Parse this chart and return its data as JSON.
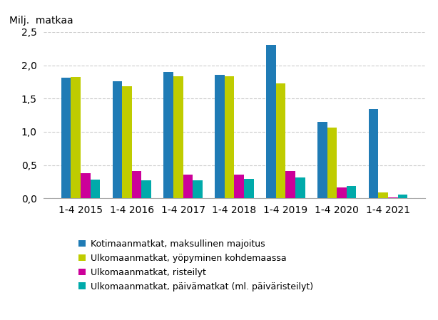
{
  "categories": [
    "1-4 2015",
    "1-4 2016",
    "1-4 2017",
    "1-4 2018",
    "1-4 2019",
    "1-4 2020",
    "1-4 2021"
  ],
  "series": {
    "Kotimaanmatkat, maksullinen majoitus": [
      1.81,
      1.76,
      1.9,
      1.86,
      2.31,
      1.15,
      1.34
    ],
    "Ulkomaanmatkat, yöpyminen kohdemaassa": [
      1.82,
      1.68,
      1.84,
      1.83,
      1.73,
      1.06,
      0.09
    ],
    "Ulkomaanmatkat, risteilyt": [
      0.38,
      0.41,
      0.36,
      0.36,
      0.41,
      0.16,
      0.01
    ],
    "Ulkomaanmatkat, päivämatkat (ml. päiväristeilyt)": [
      0.28,
      0.27,
      0.27,
      0.29,
      0.31,
      0.19,
      0.06
    ]
  },
  "colors": [
    "#1F7BB5",
    "#BFCC00",
    "#CC0099",
    "#00AAAA"
  ],
  "ylabel": "Milj.  matkaa",
  "ylim": [
    0,
    2.5
  ],
  "yticks": [
    0.0,
    0.5,
    1.0,
    1.5,
    2.0,
    2.5
  ],
  "ytick_labels": [
    "0,0",
    "0,5",
    "1,0",
    "1,5",
    "2,0",
    "2,5"
  ],
  "bar_width": 0.19,
  "legend_labels": [
    "Kotimaanmatkat, maksullinen majoitus",
    "Ulkomaanmatkat, yöpyminen kohdemaassa",
    "Ulkomaanmatkat, risteilyt",
    "Ulkomaanmatkat, päivämatkat (ml. päiväristeilyt)"
  ],
  "background_color": "#ffffff",
  "grid_color": "#cccccc"
}
